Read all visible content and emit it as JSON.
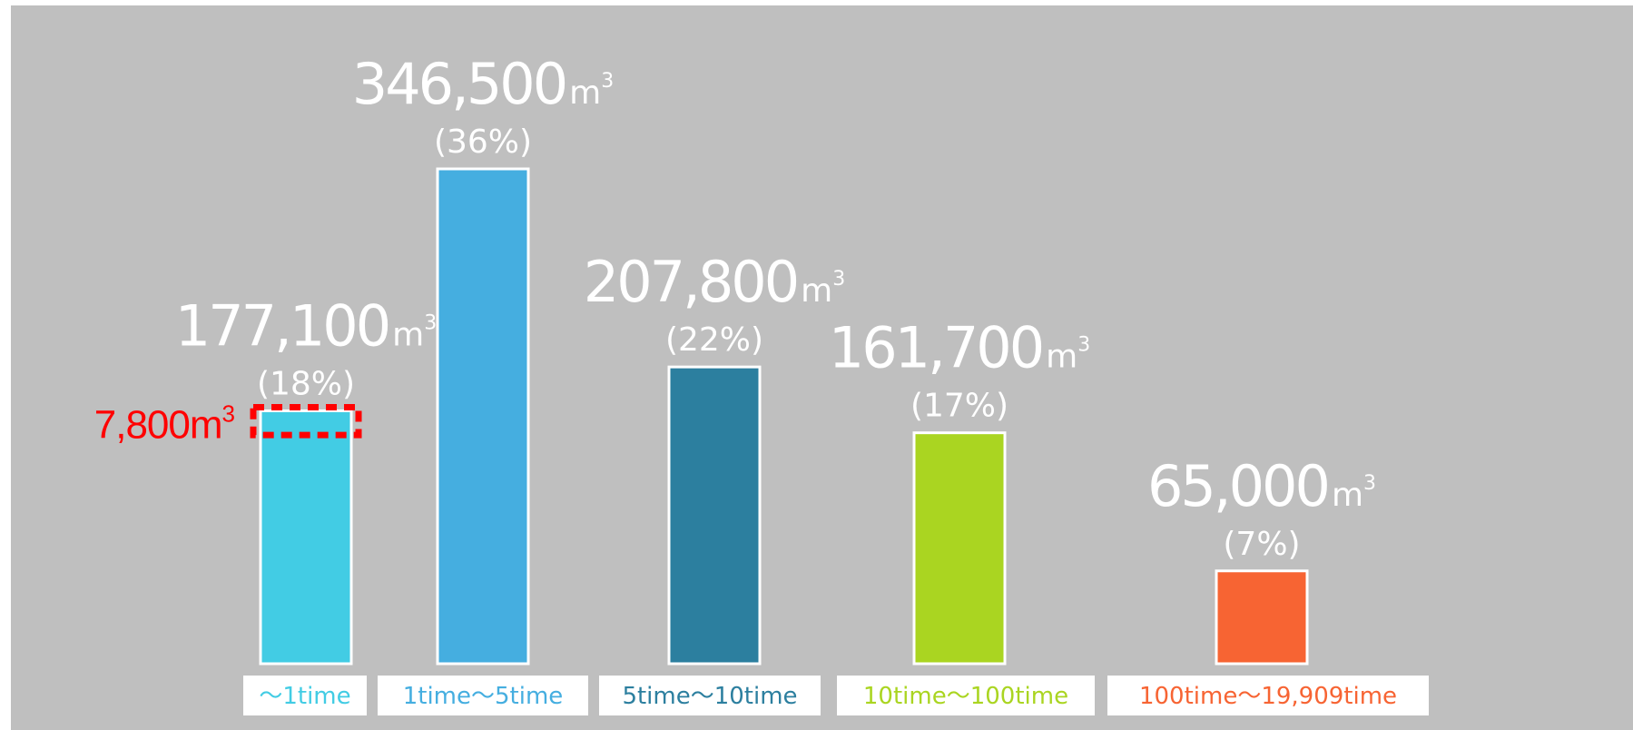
{
  "chart_data": {
    "type": "bar",
    "title": "",
    "xlabel": "",
    "ylabel": "",
    "ylim": [
      0,
      346500
    ],
    "grid": false,
    "legend": "none",
    "categories": [
      "〜1time",
      "1time〜5time",
      "5time〜10time",
      "10time〜100time",
      "100time〜19,909time"
    ],
    "values": [
      177100,
      346500,
      207800,
      161700,
      65000
    ],
    "value_labels": [
      "177,100",
      "346,500",
      "207,800",
      "161,700",
      "65,000"
    ],
    "unit": "m",
    "unit_superscript": "3",
    "percent_labels": [
      "(18%)",
      "(36%)",
      "(22%)",
      "(17%)",
      "(7%)"
    ],
    "colors": [
      "#42cce4",
      "#45aee0",
      "#2c7f9f",
      "#aad521",
      "#f76433"
    ],
    "annotation": {
      "category": "〜1time",
      "value": 7800,
      "text": "7,800m",
      "superscript": "3",
      "color": "#ff0000",
      "style": "dotted-box"
    }
  }
}
